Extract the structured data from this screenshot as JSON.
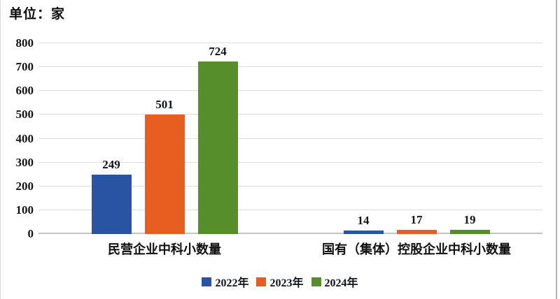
{
  "unit_label": "单位：家",
  "chart_data": {
    "type": "bar",
    "title": "",
    "unit": "单位：家",
    "categories": [
      "民营企业中科小数量",
      "国有（集体）控股企业中科小数量"
    ],
    "series": [
      {
        "name": "2022年",
        "color": "#2854A3",
        "values": [
          249,
          14
        ]
      },
      {
        "name": "2023年",
        "color": "#E85D20",
        "values": [
          501,
          17
        ]
      },
      {
        "name": "2024年",
        "color": "#568E2A",
        "values": [
          724,
          19
        ]
      }
    ],
    "ylim": [
      0,
      800
    ],
    "yticks": [
      0,
      100,
      200,
      300,
      400,
      500,
      600,
      700,
      800
    ],
    "grid": true,
    "value_labels": true,
    "legend_position": "bottom"
  }
}
